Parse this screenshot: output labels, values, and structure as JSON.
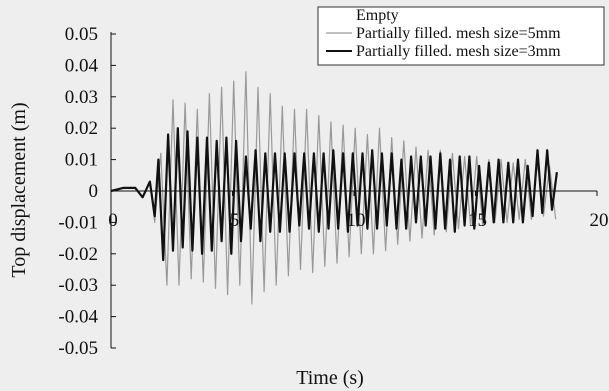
{
  "chart_data": {
    "type": "line",
    "xlabel": "Time (s)",
    "ylabel": "Top displacement (m)",
    "xlim": [
      0,
      20
    ],
    "ylim": [
      -0.05,
      0.05
    ],
    "xticks": [
      0,
      5,
      10,
      15,
      20
    ],
    "xtick_labels": [
      "0",
      "5",
      "10",
      "15",
      "20"
    ],
    "yticks": [
      0.05,
      0.04,
      0.03,
      0.02,
      0.01,
      0,
      -0.01,
      -0.02,
      -0.03,
      -0.04,
      -0.05
    ],
    "ytick_labels": [
      "0.05",
      "0.04",
      "0.03",
      "0.02",
      "0.01",
      "0",
      "-0.01",
      "-0.02",
      "-0.03",
      "-0.04",
      "-0.05"
    ],
    "grid": false,
    "legend_position": "top-right",
    "series": [
      {
        "name": "Empty",
        "color": "#bbbbbb",
        "style": "none",
        "x": [],
        "y": []
      },
      {
        "name": "Partially filled. mesh size=5mm",
        "color": "#999999",
        "style": "solid",
        "x": [
          0,
          0.5,
          1.0,
          1.3,
          1.6,
          1.8,
          2.05,
          2.3,
          2.55,
          2.8,
          3.05,
          3.3,
          3.55,
          3.8,
          4.05,
          4.3,
          4.55,
          4.8,
          5.05,
          5.3,
          5.55,
          5.8,
          6.05,
          6.3,
          6.55,
          6.8,
          7.05,
          7.3,
          7.55,
          7.8,
          8.05,
          8.3,
          8.55,
          8.8,
          9.05,
          9.3,
          9.55,
          9.8,
          10.05,
          10.3,
          10.55,
          10.8,
          11.05,
          11.3,
          11.55,
          11.8,
          12.05,
          12.3,
          12.55,
          12.8,
          13.05,
          13.3,
          13.55,
          13.8,
          14.05,
          14.3,
          14.55,
          14.8,
          15.05,
          15.3,
          15.55,
          15.8,
          16.05,
          16.3,
          16.55,
          16.8,
          17.05,
          17.3,
          17.55,
          17.8,
          18.05,
          18.3
        ],
        "y": [
          0,
          0.001,
          0.001,
          -0.002,
          0.003,
          -0.01,
          0.012,
          -0.03,
          0.029,
          -0.03,
          0.028,
          -0.028,
          0.026,
          -0.029,
          0.031,
          -0.031,
          0.033,
          -0.033,
          0.035,
          -0.03,
          0.038,
          -0.036,
          0.033,
          -0.032,
          0.031,
          -0.03,
          0.027,
          -0.027,
          0.026,
          -0.025,
          0.026,
          -0.026,
          0.024,
          -0.024,
          0.022,
          -0.023,
          0.021,
          -0.021,
          0.02,
          -0.02,
          0.018,
          -0.02,
          0.02,
          -0.019,
          0.017,
          -0.017,
          0.016,
          -0.016,
          0.014,
          -0.015,
          0.013,
          -0.014,
          0.013,
          -0.013,
          0.012,
          -0.012,
          0.011,
          -0.011,
          0.011,
          -0.011,
          0.01,
          -0.01,
          0.01,
          -0.01,
          0.009,
          -0.009,
          0.01,
          -0.009,
          0.009,
          -0.008,
          0.008,
          -0.009
        ]
      },
      {
        "name": "Partially filled. mesh size=3mm",
        "color": "#111111",
        "style": "solid",
        "x": [
          0,
          0.5,
          1.0,
          1.3,
          1.6,
          1.8,
          1.95,
          2.15,
          2.35,
          2.55,
          2.75,
          2.95,
          3.15,
          3.35,
          3.55,
          3.75,
          3.95,
          4.15,
          4.35,
          4.55,
          4.75,
          4.95,
          5.15,
          5.35,
          5.55,
          5.75,
          5.95,
          6.15,
          6.35,
          6.55,
          6.75,
          6.95,
          7.15,
          7.35,
          7.55,
          7.75,
          7.95,
          8.15,
          8.35,
          8.55,
          8.75,
          8.95,
          9.15,
          9.35,
          9.55,
          9.75,
          9.95,
          10.15,
          10.35,
          10.55,
          10.75,
          10.95,
          11.15,
          11.35,
          11.55,
          11.75,
          11.95,
          12.15,
          12.35,
          12.55,
          12.75,
          12.95,
          13.15,
          13.35,
          13.55,
          13.75,
          13.95,
          14.15,
          14.35,
          14.55,
          14.75,
          14.95,
          15.15,
          15.35,
          15.55,
          15.75,
          15.95,
          16.15,
          16.35,
          16.55,
          16.75,
          16.95,
          17.15,
          17.35,
          17.55,
          17.75,
          17.95,
          18.15,
          18.35
        ],
        "y": [
          0,
          0.001,
          0.001,
          -0.002,
          0.003,
          -0.008,
          0.01,
          -0.022,
          0.018,
          -0.019,
          0.02,
          -0.018,
          0.019,
          -0.019,
          0.017,
          -0.02,
          0.017,
          -0.019,
          0.016,
          -0.016,
          0.017,
          -0.02,
          0.016,
          -0.016,
          0.011,
          -0.012,
          0.013,
          -0.016,
          0.012,
          -0.013,
          0.012,
          -0.013,
          0.012,
          -0.013,
          0.012,
          -0.011,
          0.012,
          -0.012,
          0.012,
          -0.013,
          0.012,
          -0.012,
          0.013,
          -0.012,
          0.012,
          -0.013,
          0.012,
          -0.011,
          0.012,
          -0.012,
          0.013,
          -0.012,
          0.012,
          -0.011,
          0.012,
          -0.012,
          0.01,
          -0.012,
          0.011,
          -0.01,
          0.011,
          -0.011,
          0.011,
          -0.012,
          0.012,
          -0.012,
          0.01,
          -0.013,
          0.011,
          -0.011,
          0.011,
          -0.012,
          0.008,
          -0.01,
          0.009,
          -0.01,
          0.01,
          -0.01,
          0.009,
          -0.01,
          0.01,
          -0.01,
          0.008,
          -0.008,
          0.013,
          -0.007,
          0.013,
          -0.006,
          0.006
        ]
      }
    ]
  }
}
